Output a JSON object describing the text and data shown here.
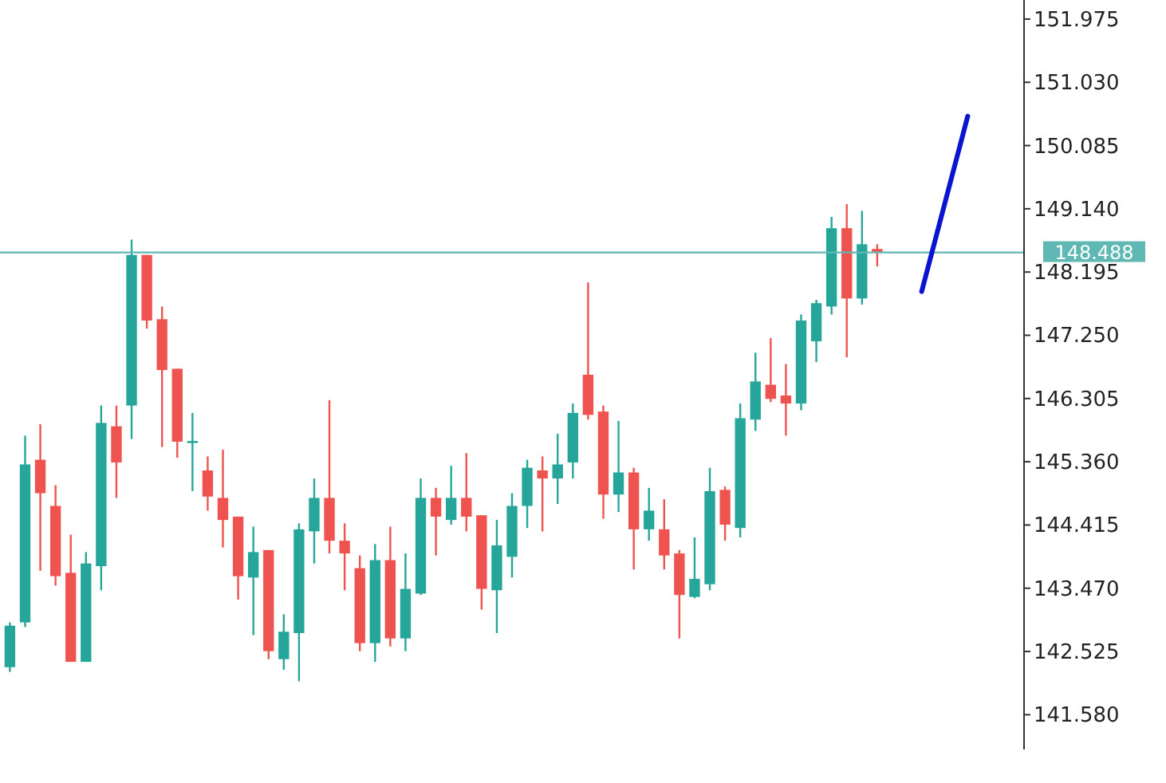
{
  "chart_data": {
    "type": "candlestick",
    "categories": [
      null,
      null,
      null,
      null,
      null,
      null,
      null,
      null,
      null,
      null,
      null,
      null,
      null,
      null,
      null,
      null,
      null,
      null,
      null,
      null,
      null,
      null,
      null,
      null,
      null,
      null,
      null,
      null,
      null,
      null,
      null,
      null,
      null,
      null,
      null,
      null,
      null,
      null,
      null,
      null,
      null,
      null,
      null,
      null,
      null,
      null,
      null,
      null,
      null,
      null,
      null,
      null,
      null,
      null,
      null,
      null,
      null,
      null,
      null,
      null,
      null,
      null,
      null,
      null,
      null,
      null,
      null
    ],
    "ohlc": [
      [
        142.29,
        142.96,
        142.22,
        142.91
      ],
      [
        142.96,
        145.75,
        142.89,
        145.32
      ],
      [
        145.39,
        145.92,
        143.73,
        144.89
      ],
      [
        144.7,
        145.01,
        143.51,
        143.65
      ],
      [
        143.7,
        144.27,
        142.37,
        142.37
      ],
      [
        142.37,
        144.01,
        142.37,
        143.84
      ],
      [
        143.8,
        146.2,
        143.44,
        145.94
      ],
      [
        145.89,
        146.2,
        144.82,
        145.35
      ],
      [
        146.2,
        148.68,
        145.7,
        148.45
      ],
      [
        148.45,
        148.45,
        147.35,
        147.47
      ],
      [
        147.49,
        147.68,
        145.58,
        146.73
      ],
      [
        146.75,
        146.75,
        145.42,
        145.66
      ],
      [
        145.64,
        146.09,
        144.92,
        145.67
      ],
      [
        145.23,
        145.44,
        144.63,
        144.84
      ],
      [
        144.82,
        145.54,
        144.08,
        144.49
      ],
      [
        144.54,
        144.54,
        143.3,
        143.65
      ],
      [
        143.63,
        144.39,
        142.77,
        144.01
      ],
      [
        144.04,
        144.04,
        142.41,
        142.53
      ],
      [
        142.41,
        143.08,
        142.25,
        142.82
      ],
      [
        142.8,
        144.44,
        142.08,
        144.35
      ],
      [
        144.32,
        145.11,
        143.84,
        144.82
      ],
      [
        144.82,
        146.28,
        143.99,
        144.18
      ],
      [
        144.18,
        144.44,
        143.44,
        143.99
      ],
      [
        143.77,
        143.96,
        142.53,
        142.65
      ],
      [
        142.65,
        144.13,
        142.37,
        143.89
      ],
      [
        143.89,
        144.39,
        142.6,
        142.72
      ],
      [
        142.72,
        143.99,
        142.53,
        143.46
      ],
      [
        143.39,
        145.11,
        143.37,
        144.82
      ],
      [
        144.82,
        144.97,
        143.96,
        144.54
      ],
      [
        144.49,
        145.3,
        144.42,
        144.82
      ],
      [
        144.82,
        145.49,
        144.32,
        144.54
      ],
      [
        144.56,
        144.56,
        143.15,
        143.46
      ],
      [
        143.44,
        144.49,
        142.8,
        144.11
      ],
      [
        143.94,
        144.89,
        143.63,
        144.7
      ],
      [
        144.7,
        145.39,
        144.37,
        145.27
      ],
      [
        145.23,
        145.44,
        144.32,
        145.11
      ],
      [
        145.11,
        145.78,
        144.73,
        145.32
      ],
      [
        145.35,
        146.23,
        145.11,
        146.09
      ],
      [
        146.66,
        148.04,
        145.99,
        146.06
      ],
      [
        146.11,
        146.2,
        144.51,
        144.87
      ],
      [
        144.87,
        145.97,
        144.61,
        145.2
      ],
      [
        145.2,
        145.27,
        143.75,
        144.35
      ],
      [
        144.35,
        144.97,
        144.18,
        144.63
      ],
      [
        144.35,
        144.8,
        143.75,
        143.96
      ],
      [
        143.99,
        144.04,
        142.72,
        143.37
      ],
      [
        143.34,
        144.23,
        143.32,
        143.61
      ],
      [
        143.53,
        145.27,
        143.44,
        144.92
      ],
      [
        144.94,
        144.99,
        144.18,
        144.42
      ],
      [
        144.37,
        146.23,
        144.23,
        146.01
      ],
      [
        145.99,
        146.99,
        145.82,
        146.56
      ],
      [
        146.51,
        147.21,
        146.25,
        146.3
      ],
      [
        146.35,
        146.82,
        145.75,
        146.23
      ],
      [
        146.23,
        147.56,
        146.13,
        147.47
      ],
      [
        147.16,
        147.78,
        146.85,
        147.73
      ],
      [
        147.68,
        149.02,
        147.56,
        148.85
      ],
      [
        148.85,
        149.21,
        146.92,
        147.8
      ],
      [
        147.8,
        149.11,
        147.71,
        148.61
      ],
      [
        148.54,
        148.61,
        148.28,
        148.49
      ],
      null,
      null,
      null,
      null,
      null,
      null,
      null,
      null,
      null
    ],
    "colors": [
      "#26a69a",
      "#26a69a",
      "#ef5350",
      "#ef5350",
      "#ef5350",
      "#26a69a",
      "#26a69a",
      "#ef5350",
      "#26a69a",
      "#ef5350",
      "#ef5350",
      "#ef5350",
      "#26a69a",
      "#ef5350",
      "#ef5350",
      "#ef5350",
      "#26a69a",
      "#ef5350",
      "#26a69a",
      "#26a69a",
      "#26a69a",
      "#ef5350",
      "#ef5350",
      "#ef5350",
      "#26a69a",
      "#ef5350",
      "#26a69a",
      "#26a69a",
      "#ef5350",
      "#26a69a",
      "#ef5350",
      "#ef5350",
      "#26a69a",
      "#26a69a",
      "#26a69a",
      "#ef5350",
      "#26a69a",
      "#26a69a",
      "#ef5350",
      "#ef5350",
      "#26a69a",
      "#ef5350",
      "#26a69a",
      "#ef5350",
      "#ef5350",
      "#26a69a",
      "#26a69a",
      "#ef5350",
      "#26a69a",
      "#26a69a",
      "#ef5350",
      "#ef5350",
      "#26a69a",
      "#26a69a",
      "#26a69a",
      "#ef5350",
      "#26a69a",
      "#ef5350",
      null,
      null,
      null,
      null,
      null,
      null,
      null,
      null,
      null
    ],
    "ylim": [
      141.06,
      152.26
    ],
    "yticks": [
      151.975,
      {
        "value": 151.03,
        "label": "151.030"
      },
      150.085,
      {
        "value": 149.14,
        "label": "149.140"
      },
      148.195,
      {
        "value": 147.25,
        "label": "147.250"
      },
      146.305,
      {
        "value": 145.36,
        "label": "145.360"
      },
      144.415,
      {
        "value": 143.47,
        "label": "143.470"
      },
      142.525,
      {
        "value": 141.58,
        "label": "141.580"
      }
    ],
    "ref_lines": [
      {
        "axis": "y",
        "value": 148.488,
        "label": "148.488",
        "color": "#5fb8b4"
      }
    ],
    "tick_labels": "y",
    "grid": false
  }
}
